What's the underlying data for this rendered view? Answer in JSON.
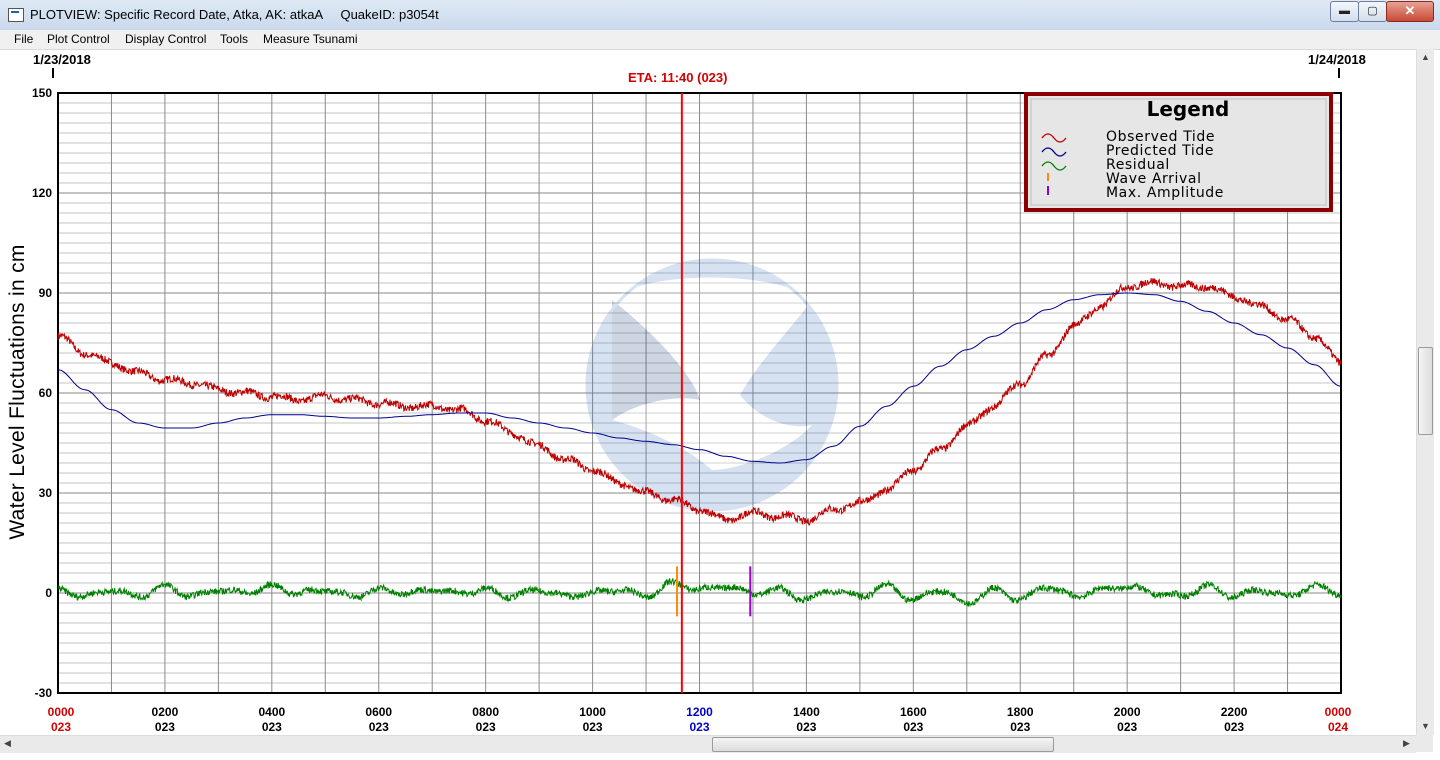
{
  "window": {
    "title": "PLOTVIEW: Specific Record Date, Atka, AK: atkaA     QuakeID: p3054t",
    "min_label": "▬",
    "max_label": "▢",
    "close_label": "✕"
  },
  "menu": [
    "File",
    "Plot Control",
    "Display Control",
    "Tools",
    "Measure Tsunami"
  ],
  "header": {
    "start_date": "1/23/2018",
    "end_date": "1/24/2018",
    "eta_label": "ETA: 11:40 (023)"
  },
  "colors": {
    "observed": "#c00000",
    "predicted": "#00008b",
    "residual": "#008000",
    "wave_arrival": "#ff8c00",
    "max_amplitude": "#9400d3",
    "eta_line": "#ff0000",
    "grid": "#9a9a9a",
    "legend_border": "#8b0000",
    "legend_bg": "#e6e6e6"
  },
  "chart_data": {
    "type": "line",
    "ylabel": "Water Level Fluctuations in cm",
    "ylim": [
      -30,
      150
    ],
    "yticks": [
      150,
      120,
      90,
      60,
      30,
      0,
      -30
    ],
    "xlim_hours": [
      0,
      24
    ],
    "grid": true,
    "legend_placement": "top-right",
    "legend": {
      "title": "Legend",
      "items": [
        "Observed Tide",
        "Predicted Tide",
        "Residual",
        "Wave Arrival",
        "Max. Amplitude"
      ]
    },
    "x_ticks": [
      {
        "hour": 0,
        "time": "0000",
        "day": "023",
        "highlight": "red"
      },
      {
        "hour": 2,
        "time": "0200",
        "day": "023",
        "highlight": ""
      },
      {
        "hour": 4,
        "time": "0400",
        "day": "023",
        "highlight": ""
      },
      {
        "hour": 6,
        "time": "0600",
        "day": "023",
        "highlight": ""
      },
      {
        "hour": 8,
        "time": "0800",
        "day": "023",
        "highlight": ""
      },
      {
        "hour": 10,
        "time": "1000",
        "day": "023",
        "highlight": ""
      },
      {
        "hour": 12,
        "time": "1200",
        "day": "023",
        "highlight": "blue"
      },
      {
        "hour": 14,
        "time": "1400",
        "day": "023",
        "highlight": ""
      },
      {
        "hour": 16,
        "time": "1600",
        "day": "023",
        "highlight": ""
      },
      {
        "hour": 18,
        "time": "1800",
        "day": "023",
        "highlight": ""
      },
      {
        "hour": 20,
        "time": "2000",
        "day": "023",
        "highlight": ""
      },
      {
        "hour": 22,
        "time": "2200",
        "day": "023",
        "highlight": ""
      },
      {
        "hour": 24,
        "time": "0000",
        "day": "024",
        "highlight": "red"
      }
    ],
    "eta_hour": 11.67,
    "wave_arrival": {
      "hour": 11.58,
      "range": [
        -7,
        8
      ]
    },
    "max_amplitude": {
      "hour": 12.95,
      "range": [
        -7,
        8
      ]
    },
    "series": [
      {
        "name": "Observed Tide",
        "x": [
          0,
          0.5,
          1,
          1.5,
          2,
          2.5,
          3,
          3.5,
          4,
          4.5,
          5,
          5.5,
          6,
          6.5,
          7,
          7.5,
          8,
          8.5,
          9,
          9.5,
          10,
          10.5,
          11,
          11.5,
          12,
          12.5,
          13,
          13.5,
          14,
          14.5,
          15,
          15.5,
          16,
          16.5,
          17,
          17.5,
          18,
          18.5,
          19,
          19.5,
          20,
          20.5,
          21,
          21.5,
          22,
          22.5,
          23,
          23.5,
          24
        ],
        "values": [
          77,
          72,
          69,
          66,
          64,
          63,
          61,
          60,
          59,
          58,
          59,
          58,
          57,
          56,
          56,
          55,
          52,
          48,
          44,
          40,
          37,
          33,
          30,
          28,
          25,
          22,
          24,
          23,
          22,
          25,
          27,
          31,
          37,
          43,
          50,
          56,
          63,
          71,
          80,
          86,
          92,
          93,
          92,
          92,
          89,
          86,
          82,
          77,
          69
        ]
      },
      {
        "name": "Predicted Tide",
        "x": [
          0,
          0.5,
          1,
          1.5,
          2,
          2.5,
          3,
          3.5,
          4,
          4.5,
          5,
          5.5,
          6,
          6.5,
          7,
          7.5,
          8,
          8.5,
          9,
          9.5,
          10,
          10.5,
          11,
          11.5,
          12,
          12.5,
          13,
          13.5,
          14,
          14.5,
          15,
          15.5,
          16,
          16.5,
          17,
          17.5,
          18,
          18.5,
          19,
          19.5,
          20,
          20.5,
          21,
          21.5,
          22,
          22.5,
          23,
          23.5,
          24
        ],
        "values": [
          67,
          61,
          55,
          51,
          49.5,
          49.5,
          51,
          52.5,
          53.5,
          53.5,
          53,
          52.5,
          52.5,
          53,
          53.5,
          54,
          54,
          52.5,
          51,
          49.5,
          48,
          46.5,
          45.5,
          44.5,
          43,
          41,
          39.5,
          39,
          40,
          44,
          50,
          56,
          62,
          68,
          73,
          77,
          81,
          85,
          88,
          89.5,
          90,
          89.5,
          87.5,
          84.5,
          81,
          77.5,
          73.5,
          68.5,
          62
        ]
      },
      {
        "name": "Residual",
        "x": [
          0,
          0.5,
          1,
          1.5,
          2,
          2.5,
          3,
          3.5,
          4,
          4.5,
          5,
          5.5,
          6,
          6.5,
          7,
          7.5,
          8,
          8.5,
          9,
          9.5,
          10,
          10.5,
          11,
          11.5,
          12,
          12.5,
          13,
          13.5,
          14,
          14.5,
          15,
          15.5,
          16,
          16.5,
          17,
          17.5,
          18,
          18.5,
          19,
          19.5,
          20,
          20.5,
          21,
          21.5,
          22,
          22.5,
          23,
          23.5,
          24
        ],
        "values": [
          1,
          -1,
          1,
          -1,
          2,
          -1,
          1,
          0,
          2,
          0,
          1,
          -1,
          1,
          0,
          1,
          0,
          1,
          -1,
          1,
          -1,
          0,
          1,
          -1,
          3,
          1,
          2,
          0,
          1,
          -2,
          1,
          -1,
          2,
          -2,
          1,
          -3,
          1,
          -2,
          2,
          -1,
          1,
          2,
          0,
          -1,
          2,
          -1,
          1,
          -1,
          2,
          0
        ]
      }
    ]
  }
}
